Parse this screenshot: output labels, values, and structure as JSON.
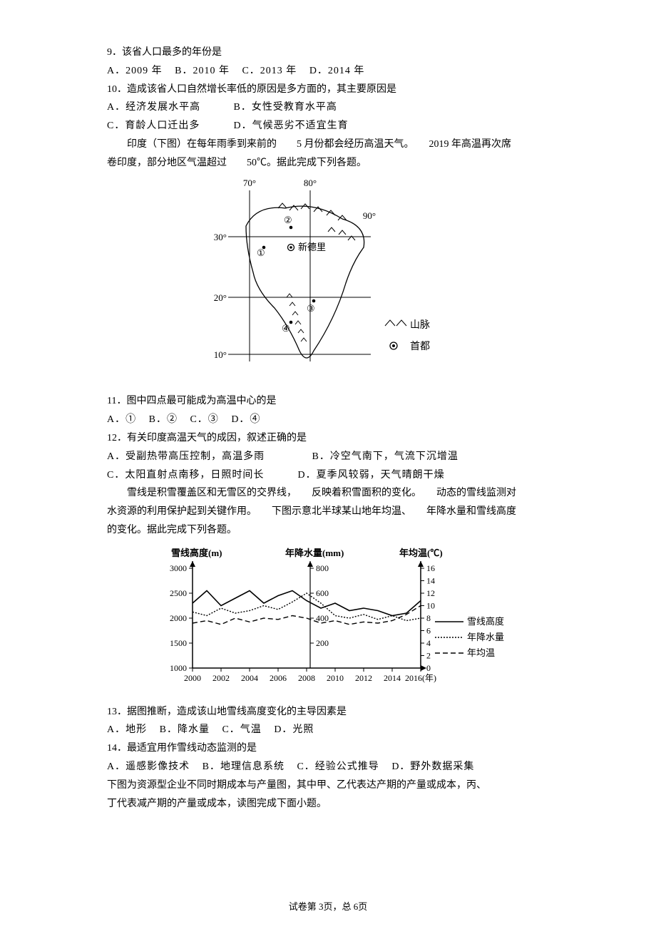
{
  "q9": {
    "stem": "9．该省人口最多的年份是",
    "opts": [
      "A．2009 年",
      "B．2010 年",
      "C．2013 年",
      "D．2014 年"
    ]
  },
  "q10": {
    "stem": "10．造成该省人口自然增长率低的原因是多方面的，其主要原因是",
    "optsA": "A．经济发展水平高",
    "optsB": "B．女性受教育水平高",
    "optsC": "C．育龄人口迁出多",
    "optsD": "D．气候恶劣不适宜生育"
  },
  "india_passage": {
    "line1": "印度（下图）在每年雨季到来前的　　5 月份都会经历高温天气。　　2019 年高温再次席",
    "line2": "卷印度，部分地区气温超过　　50℃。据此完成下列各题。"
  },
  "india_map": {
    "lon_labels": [
      "70°",
      "80°",
      "90°"
    ],
    "lat_labels": [
      "30°",
      "20°",
      "10°"
    ],
    "capital_label": "新德里",
    "legend_mountain": "山脉",
    "legend_capital": "首都",
    "points": [
      "①",
      "②",
      "③",
      "④"
    ],
    "stroke": "#000000",
    "bg": "#ffffff"
  },
  "q11": {
    "stem": "11．图中四点最可能成为高温中心的是",
    "opts": [
      "A．①",
      "B．②",
      "C．③",
      "D．④"
    ]
  },
  "q12": {
    "stem": "12．有关印度高温天气的成因，叙述正确的是",
    "optsA": "A．受副热带高压控制，高温多雨",
    "optsB": "B．冷空气南下，气流下沉增温",
    "optsC": "C．太阳直射点南移，日照时间长",
    "optsD": "D．夏季风较弱，天气晴朗干燥"
  },
  "snow_passage": {
    "line1": "雪线是积雪覆盖区和无雪区的交界线，　　反映着积雪面积的变化。　　动态的雪线监测对",
    "line2": "水资源的利用保护起到关键作用。　　下图示意北半球某山地年均温、　　年降水量和雪线高度",
    "line3": "的变化。据此完成下列各题。"
  },
  "snow_chart": {
    "y1_title": "雪线高度(m)",
    "y2_title": "年降水量(mm)",
    "y3_title": "年均温(℃)",
    "y1_ticks": [
      "3000",
      "2500",
      "2000",
      "1500",
      "1000"
    ],
    "y2_ticks": [
      "800",
      "600",
      "400",
      "200"
    ],
    "y3_ticks": [
      "16",
      "14",
      "12",
      "10",
      "8",
      "6",
      "4",
      "2",
      "0"
    ],
    "x_ticks": [
      "2000",
      "2002",
      "2004",
      "2006",
      "2008",
      "2010",
      "2012",
      "2014",
      "2016(年)"
    ],
    "legend": [
      "雪线高度",
      "年降水量",
      "年均温"
    ],
    "colors": {
      "axis": "#000000",
      "bg": "#ffffff"
    },
    "series": {
      "snowline": [
        2300,
        2550,
        2250,
        2400,
        2550,
        2300,
        2450,
        2550,
        2350,
        2200,
        2300,
        2150,
        2200,
        2150,
        2050,
        2100,
        2350
      ],
      "precip": [
        450,
        420,
        480,
        440,
        460,
        500,
        470,
        530,
        600,
        520,
        420,
        400,
        430,
        390,
        420,
        380,
        400
      ],
      "temp": [
        7.2,
        7.6,
        7.0,
        8.0,
        7.4,
        8.0,
        7.8,
        8.4,
        8.0,
        7.2,
        7.6,
        7.0,
        7.4,
        7.2,
        7.6,
        8.6,
        10.0
      ]
    }
  },
  "q13": {
    "stem": "13．据图推断，造成该山地雪线高度变化的主导因素是",
    "opts": [
      "A．地形",
      "B．降水量",
      "C．气温",
      "D．光照"
    ]
  },
  "q14": {
    "stem": "14．最适宜用作雪线动态监测的是",
    "opts": [
      "A．遥感影像技术",
      "B．地理信息系统",
      "C．经验公式推导",
      "D．野外数据采集"
    ]
  },
  "resource_passage": {
    "line1": "下图为资源型企业不同时期成本与产量图，其中甲、乙代表达产期的产量或成本，丙、",
    "line2": "丁代表减产期的产量或成本，读图完成下面小题。"
  },
  "footer": "试卷第 3页，总 6页"
}
